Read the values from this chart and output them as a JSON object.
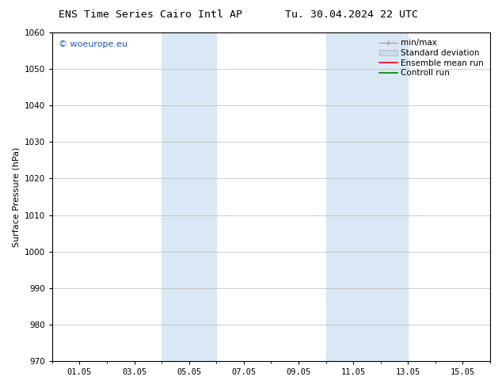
{
  "title_left": "ENS Time Series Cairo Intl AP",
  "title_right": "Tu. 30.04.2024 22 UTC",
  "ylabel": "Surface Pressure (hPa)",
  "ylim": [
    970,
    1060
  ],
  "yticks": [
    970,
    980,
    990,
    1000,
    1010,
    1020,
    1030,
    1040,
    1050,
    1060
  ],
  "xtick_labels": [
    "01.05",
    "03.05",
    "05.05",
    "07.05",
    "09.05",
    "11.05",
    "13.05",
    "15.05"
  ],
  "xtick_positions": [
    1,
    3,
    5,
    7,
    9,
    11,
    13,
    15
  ],
  "xlim": [
    0,
    16
  ],
  "shade_bands": [
    {
      "x_start": 4.0,
      "x_end": 6.0,
      "color": "#dae8f5"
    },
    {
      "x_start": 10.0,
      "x_end": 13.0,
      "color": "#dae8f5"
    }
  ],
  "watermark_text": "© woeurope.eu",
  "watermark_color": "#2255cc",
  "background_color": "#ffffff",
  "grid_color": "#bbbbbb",
  "font_size_title": 9.5,
  "font_size_axis": 8,
  "font_size_ticks": 7.5,
  "font_size_legend": 7.5,
  "font_size_watermark": 8
}
